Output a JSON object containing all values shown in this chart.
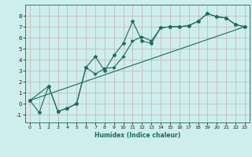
{
  "title": "",
  "xlabel": "Humidex (Indice chaleur)",
  "ylabel": "",
  "bg_color": "#ceeeed",
  "grid_color": "#c8b8b8",
  "line_color": "#1a6b5a",
  "xlim": [
    -0.5,
    23.5
  ],
  "ylim": [
    -1.7,
    9.0
  ],
  "xticks": [
    0,
    1,
    2,
    3,
    4,
    5,
    6,
    7,
    8,
    9,
    10,
    11,
    12,
    13,
    14,
    15,
    16,
    17,
    18,
    19,
    20,
    21,
    22,
    23
  ],
  "yticks": [
    -1,
    0,
    1,
    2,
    3,
    4,
    5,
    6,
    7,
    8
  ],
  "line1_x": [
    0,
    1,
    2,
    3,
    4,
    5,
    6,
    7,
    8,
    9,
    10,
    11,
    12,
    13,
    14,
    15,
    16,
    17,
    18,
    19,
    20,
    21,
    22,
    23
  ],
  "line1_y": [
    0.3,
    -0.8,
    1.6,
    -0.7,
    -0.4,
    0.0,
    3.3,
    4.3,
    3.0,
    4.4,
    5.5,
    7.5,
    5.7,
    5.5,
    6.9,
    7.0,
    7.0,
    7.1,
    7.5,
    8.2,
    7.9,
    7.8,
    7.2,
    7.0
  ],
  "line2_x": [
    0,
    2,
    3,
    4,
    5,
    6,
    7,
    8,
    9,
    10,
    11,
    12,
    13,
    14,
    15,
    16,
    17,
    18,
    19,
    20,
    21,
    22,
    23
  ],
  "line2_y": [
    0.3,
    1.6,
    -0.7,
    -0.4,
    0.0,
    3.3,
    2.7,
    3.2,
    3.3,
    4.3,
    5.7,
    6.1,
    5.7,
    6.9,
    7.0,
    7.0,
    7.1,
    7.5,
    8.2,
    7.9,
    7.8,
    7.2,
    7.0
  ],
  "line3_x": [
    0,
    23
  ],
  "line3_y": [
    0.3,
    7.0
  ]
}
